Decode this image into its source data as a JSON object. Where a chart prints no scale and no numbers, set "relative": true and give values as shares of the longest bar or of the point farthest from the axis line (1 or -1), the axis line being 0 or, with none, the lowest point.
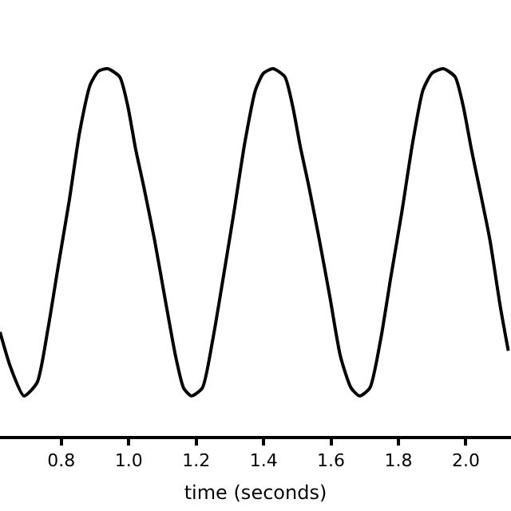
{
  "chart_data": {
    "type": "line",
    "xlabel": "time (seconds)",
    "relative": true,
    "marker": "none",
    "line_style": "solid",
    "xlim": [
      0.618,
      2.134
    ],
    "xticks": [
      {
        "value": 0.8,
        "label": "0.8"
      },
      {
        "value": 1.0,
        "label": "1.0"
      },
      {
        "value": 1.2,
        "label": "1.2"
      },
      {
        "value": 1.4,
        "label": "1.4"
      },
      {
        "value": 1.6,
        "label": "1.6"
      },
      {
        "value": 1.8,
        "label": "1.8"
      },
      {
        "value": 2.0,
        "label": "2.0"
      }
    ],
    "x": [
      0.618,
      0.649,
      0.689,
      0.728,
      0.76,
      0.791,
      0.823,
      0.854,
      0.886,
      0.91,
      0.937,
      0.973,
      0.997,
      1.02,
      1.044,
      1.076,
      1.107,
      1.139,
      1.163,
      1.186,
      1.218,
      1.249,
      1.281,
      1.312,
      1.344,
      1.376,
      1.4,
      1.428,
      1.463,
      1.486,
      1.51,
      1.534,
      1.565,
      1.597,
      1.628,
      1.66,
      1.685,
      1.715,
      1.747,
      1.778,
      1.81,
      1.842,
      1.873,
      1.9,
      1.933,
      1.968,
      1.992,
      2.016,
      2.039,
      2.071,
      2.103,
      2.126
    ],
    "series": [
      {
        "color": "#000000",
        "values": [
          0.283,
          0.188,
          0.109,
          0.145,
          0.29,
          0.464,
          0.638,
          0.826,
          0.957,
          0.993,
          1.0,
          0.978,
          0.899,
          0.783,
          0.681,
          0.536,
          0.377,
          0.217,
          0.13,
          0.109,
          0.13,
          0.261,
          0.435,
          0.609,
          0.797,
          0.942,
          0.988,
          1.0,
          0.978,
          0.899,
          0.783,
          0.681,
          0.536,
          0.377,
          0.217,
          0.13,
          0.109,
          0.13,
          0.261,
          0.435,
          0.609,
          0.797,
          0.942,
          0.988,
          1.0,
          0.978,
          0.899,
          0.783,
          0.681,
          0.536,
          0.348,
          0.232
        ]
      }
    ]
  }
}
